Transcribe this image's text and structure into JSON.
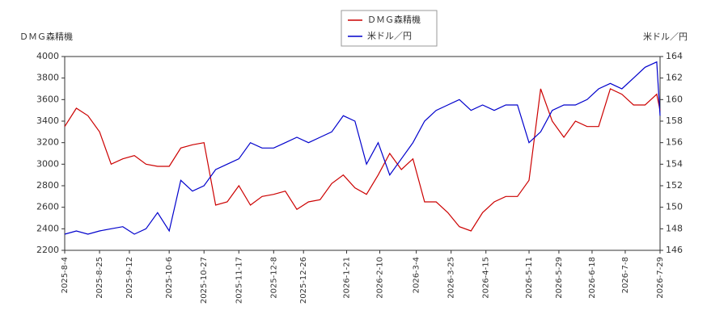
{
  "chart_data": {
    "type": "line",
    "y_label": "ＤＭＧ森精機",
    "y2_label": "米ドル／円",
    "x": [
      "2025-8-4",
      "2025-8-11",
      "2025-8-18",
      "2025-8-25",
      "2025-9-1",
      "2025-9-8",
      "2025-9-15",
      "2025-9-22",
      "2025-9-29",
      "2025-10-6",
      "2025-10-13",
      "2025-10-20",
      "2025-10-27",
      "2025-11-3",
      "2025-11-10",
      "2025-11-17",
      "2025-11-24",
      "2025-12-1",
      "2025-12-8",
      "2025-12-15",
      "2025-12-22",
      "2025-12-29",
      "2026-1-5",
      "2026-1-12",
      "2026-1-19",
      "2026-1-26",
      "2026-2-2",
      "2026-2-9",
      "2026-2-16",
      "2026-2-23",
      "2026-3-2",
      "2026-3-9",
      "2026-3-16",
      "2026-3-23",
      "2026-3-30",
      "2026-4-6",
      "2026-4-13",
      "2026-4-20",
      "2026-4-27",
      "2026-5-4",
      "2026-5-11",
      "2026-5-18",
      "2026-5-25",
      "2026-6-1",
      "2026-6-8",
      "2026-6-15",
      "2026-6-22",
      "2026-6-29",
      "2026-7-6",
      "2026-7-13",
      "2026-7-20",
      "2026-7-27",
      "2026-7-29"
    ],
    "series": [
      {
        "name": "ＤＭＧ森精機",
        "color": "#cc0000",
        "axis": "y",
        "values": [
          3350,
          3520,
          3450,
          3300,
          3000,
          3050,
          3080,
          3000,
          2980,
          2980,
          3150,
          3180,
          3200,
          2620,
          2650,
          2800,
          2620,
          2700,
          2720,
          2750,
          2580,
          2650,
          2670,
          2820,
          2900,
          2780,
          2720,
          2900,
          3100,
          2950,
          3050,
          2650,
          2650,
          2550,
          2420,
          2380,
          2550,
          2650,
          2700,
          2700,
          2850,
          3700,
          3400,
          3250,
          3400,
          3350,
          3350,
          3700,
          3650,
          3550,
          3550,
          3650,
          3500
        ]
      },
      {
        "name": "米ドル／円",
        "color": "#0000cc",
        "axis": "y2",
        "values": [
          147.5,
          147.8,
          147.5,
          147.8,
          148.0,
          148.2,
          147.5,
          148.0,
          149.5,
          147.8,
          152.5,
          151.5,
          152.0,
          153.5,
          154.0,
          154.5,
          156.0,
          155.5,
          155.5,
          156.0,
          156.5,
          156.0,
          156.5,
          157.0,
          158.5,
          158.0,
          154.0,
          156.0,
          153.0,
          154.5,
          156.0,
          158.0,
          159.0,
          159.5,
          160.0,
          159.0,
          159.5,
          159.0,
          159.5,
          159.5,
          156.0,
          157.0,
          159.0,
          159.5,
          159.5,
          160.0,
          161.0,
          161.5,
          161.0,
          162.0,
          163.0,
          163.5,
          158.5
        ]
      }
    ],
    "xlim": [
      "2025-8-4",
      "2026-7-29"
    ],
    "xticks": [
      "2025-8-4",
      "2025-8-25",
      "2025-9-12",
      "2025-10-6",
      "2025-10-27",
      "2025-11-17",
      "2025-12-8",
      "2025-12-26",
      "2026-1-21",
      "2026-2-10",
      "2026-3-4",
      "2026-3-25",
      "2026-4-15",
      "2026-5-11",
      "2026-5-29",
      "2026-6-18",
      "2026-7-8",
      "2026-7-29"
    ],
    "ylim": [
      2200,
      4000
    ],
    "yticks": [
      2200,
      2400,
      2600,
      2800,
      3000,
      3200,
      3400,
      3600,
      3800,
      4000
    ],
    "y2lim": [
      146,
      164
    ],
    "y2ticks": [
      146,
      148,
      150,
      152,
      154,
      156,
      158,
      160,
      162,
      164
    ],
    "legend": "top"
  }
}
